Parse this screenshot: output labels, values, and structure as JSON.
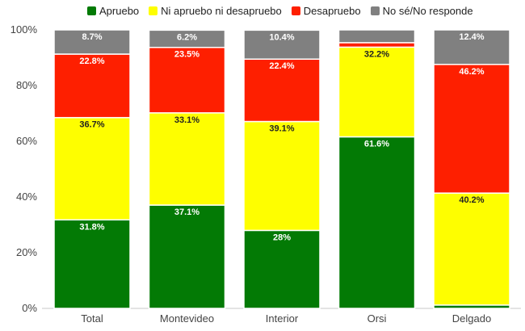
{
  "chart_data": {
    "type": "bar",
    "stacked": true,
    "percent": true,
    "categories": [
      "Total",
      "Montevideo",
      "Interior",
      "Orsi",
      "Delgado"
    ],
    "series": [
      {
        "name": "Apruebo",
        "color": "#037a05",
        "values": [
          31.8,
          37.1,
          28.0,
          61.6,
          1.2
        ],
        "labels": [
          "31.8%",
          "37.1%",
          "28%",
          "61.6%",
          ""
        ]
      },
      {
        "name": "Ni apruebo ni desapruebo",
        "color": "#fefe00",
        "values": [
          36.7,
          33.1,
          39.1,
          32.2,
          40.2
        ],
        "labels": [
          "36.7%",
          "33.1%",
          "39.1%",
          "32.2%",
          "40.2%"
        ]
      },
      {
        "name": "Desapruebo",
        "color": "#fe1f00",
        "values": [
          22.8,
          23.5,
          22.4,
          1.6,
          46.2
        ],
        "labels": [
          "22.8%",
          "23.5%",
          "22.4%",
          "",
          "46.2%"
        ]
      },
      {
        "name": "No sé/No responde",
        "color": "#808080",
        "values": [
          8.7,
          6.2,
          10.4,
          4.6,
          12.4
        ],
        "labels": [
          "8.7%",
          "6.2%",
          "10.4%",
          "",
          "12.4%"
        ]
      }
    ],
    "y_ticks": [
      "0%",
      "20%",
      "40%",
      "60%",
      "80%",
      "100%"
    ],
    "ylim": [
      0,
      100
    ],
    "grid": false,
    "legend_position": "top"
  }
}
